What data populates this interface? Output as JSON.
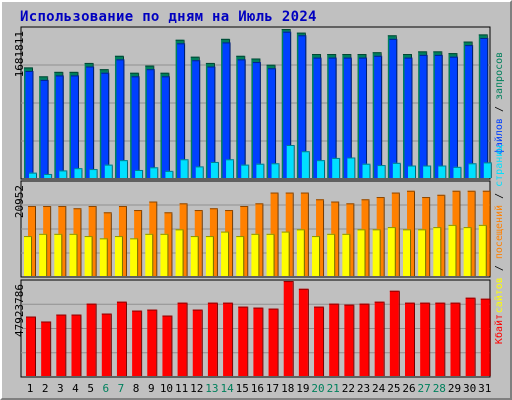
{
  "chart_data": [
    {
      "type": "bar",
      "title": "Использование по дням на Июль 2024",
      "categories": [
        "1",
        "2",
        "3",
        "4",
        "5",
        "6",
        "7",
        "8",
        "9",
        "10",
        "11",
        "12",
        "13",
        "14",
        "15",
        "16",
        "17",
        "18",
        "19",
        "20",
        "21",
        "22",
        "23",
        "24",
        "25",
        "26",
        "27",
        "28",
        "29",
        "30",
        "31"
      ],
      "weekend_days": [
        "6",
        "7",
        "13",
        "14",
        "20",
        "21",
        "27",
        "28"
      ],
      "ymax_label": "1681811",
      "ylim": [
        0,
        1681811
      ],
      "series": [
        {
          "name": "запросов",
          "color": "#00805c",
          "values": [
            1240000,
            1140000,
            1190000,
            1190000,
            1290000,
            1220000,
            1370000,
            1180000,
            1260000,
            1180000,
            1550000,
            1360000,
            1290000,
            1560000,
            1370000,
            1340000,
            1270000,
            1670000,
            1630000,
            1390000,
            1390000,
            1390000,
            1390000,
            1410000,
            1600000,
            1390000,
            1420000,
            1420000,
            1400000,
            1530000,
            1610000
          ]
        },
        {
          "name": "файлов",
          "color": "#0040ff",
          "values": [
            1200000,
            1100000,
            1150000,
            1150000,
            1250000,
            1180000,
            1330000,
            1140000,
            1220000,
            1140000,
            1510000,
            1320000,
            1250000,
            1520000,
            1330000,
            1300000,
            1230000,
            1640000,
            1600000,
            1350000,
            1350000,
            1350000,
            1350000,
            1370000,
            1560000,
            1350000,
            1380000,
            1380000,
            1360000,
            1490000,
            1570000
          ]
        },
        {
          "name": "страниц",
          "color": "#00e0ff",
          "values": [
            60000,
            45000,
            85000,
            110000,
            100000,
            150000,
            200000,
            90000,
            120000,
            80000,
            210000,
            130000,
            180000,
            210000,
            150000,
            160000,
            165000,
            370000,
            300000,
            200000,
            225000,
            230000,
            160000,
            145000,
            170000,
            140000,
            140000,
            140000,
            125000,
            165000,
            175000
          ]
        }
      ]
    },
    {
      "type": "bar",
      "ymax_label": "20952",
      "ylim": [
        0,
        20952
      ],
      "series": [
        {
          "name": "посещений",
          "color": "#ff8000",
          "values": [
            15600,
            15600,
            15600,
            15100,
            15600,
            14200,
            15600,
            14700,
            16600,
            14200,
            16200,
            14700,
            15100,
            14700,
            15600,
            16200,
            18600,
            18600,
            18600,
            17100,
            16600,
            16200,
            17100,
            17600,
            18600,
            19000,
            17600,
            18100,
            19000,
            19000,
            19000
          ]
        },
        {
          "name": "сайтов",
          "color": "#ffff00",
          "values": [
            8900,
            9400,
            9400,
            9400,
            8900,
            8400,
            8900,
            8400,
            9400,
            9400,
            10400,
            8900,
            8900,
            9900,
            8900,
            9400,
            9400,
            9900,
            10400,
            8900,
            9400,
            9400,
            10400,
            10400,
            10900,
            10400,
            10400,
            10900,
            11400,
            10900,
            11400
          ]
        }
      ]
    },
    {
      "type": "bar",
      "ymax_label": "47923786",
      "ylim": [
        0,
        47923786
      ],
      "series": [
        {
          "name": "Кбайт",
          "color": "#ff0000",
          "values": [
            30000000,
            27500000,
            31000000,
            31000000,
            36500000,
            31500000,
            37500000,
            33000000,
            33500000,
            30500000,
            37000000,
            33500000,
            37000000,
            37000000,
            35000000,
            34500000,
            34000000,
            47900000,
            44000000,
            35000000,
            36500000,
            36000000,
            36500000,
            37500000,
            43000000,
            37000000,
            37000000,
            37000000,
            37000000,
            39500000,
            39000000
          ]
        }
      ]
    }
  ]
}
